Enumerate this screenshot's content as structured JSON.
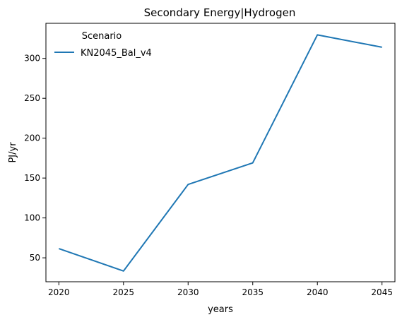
{
  "chart_data": {
    "type": "line",
    "title": "Secondary Energy|Hydrogen",
    "xlabel": "years",
    "ylabel": "PJ/yr",
    "x": [
      2020,
      2025,
      2030,
      2035,
      2040,
      2045
    ],
    "xticks": [
      2020,
      2025,
      2030,
      2035,
      2040,
      2045
    ],
    "yticks": [
      50,
      100,
      150,
      200,
      250,
      300
    ],
    "xlim": [
      2019,
      2046
    ],
    "ylim": [
      20,
      344
    ],
    "grid": false,
    "legend": {
      "title": "Scenario",
      "placement": "top-left"
    },
    "series": [
      {
        "name": "KN2045_Bal_v4",
        "color": "#1f77b4",
        "values": [
          61.5,
          33.5,
          142.0,
          169.0,
          329.5,
          314.0
        ]
      }
    ]
  }
}
